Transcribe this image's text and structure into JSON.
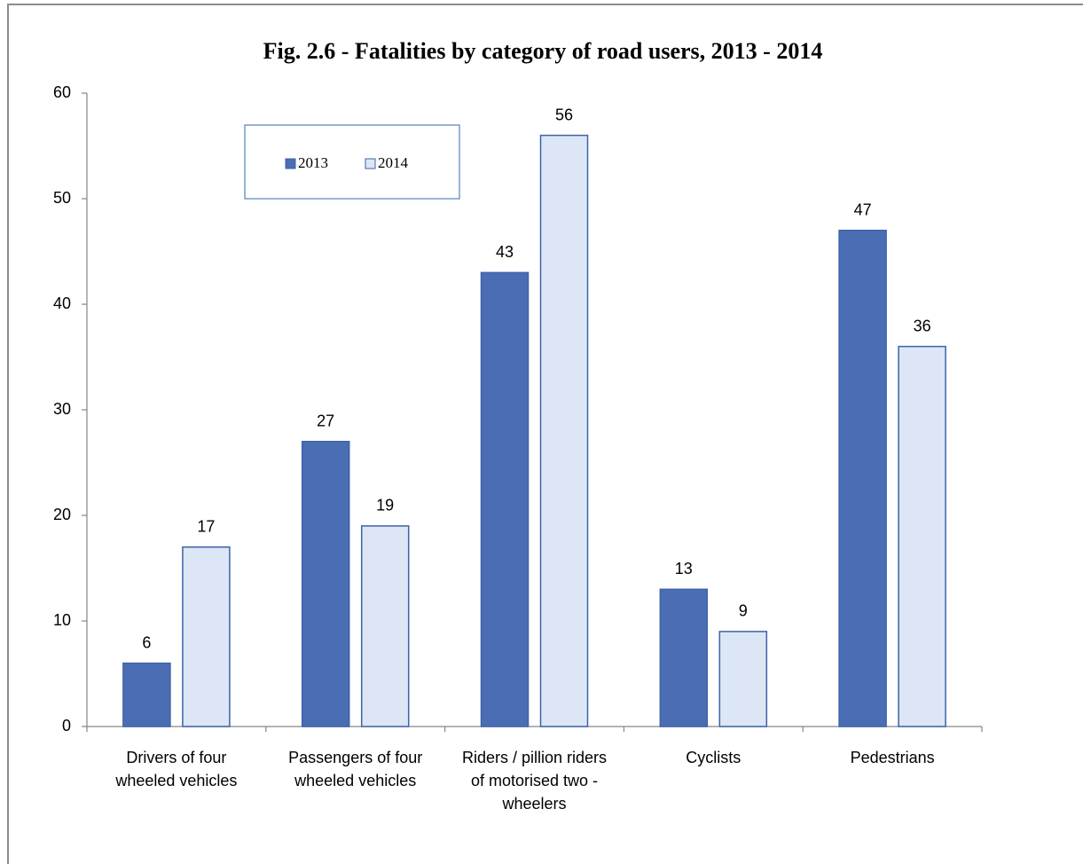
{
  "chart_data": {
    "type": "bar",
    "title": "Fig. 2.6 - Fatalities by category of road users, 2013 - 2014",
    "categories": [
      "Drivers of four wheeled vehicles",
      "Passengers of four wheeled vehicles",
      "Riders / pillion riders of motorised two - wheelers",
      "Cyclists",
      "Pedestrians"
    ],
    "series": [
      {
        "name": "2013",
        "color": "#4a6db3",
        "values": [
          6,
          27,
          43,
          13,
          47
        ]
      },
      {
        "name": "2014",
        "color": "#dce6f5",
        "values": [
          17,
          19,
          56,
          9,
          36
        ]
      }
    ],
    "ylim": [
      0,
      60
    ],
    "yticks": [
      0,
      10,
      20,
      30,
      40,
      50,
      60
    ],
    "grid": false
  }
}
